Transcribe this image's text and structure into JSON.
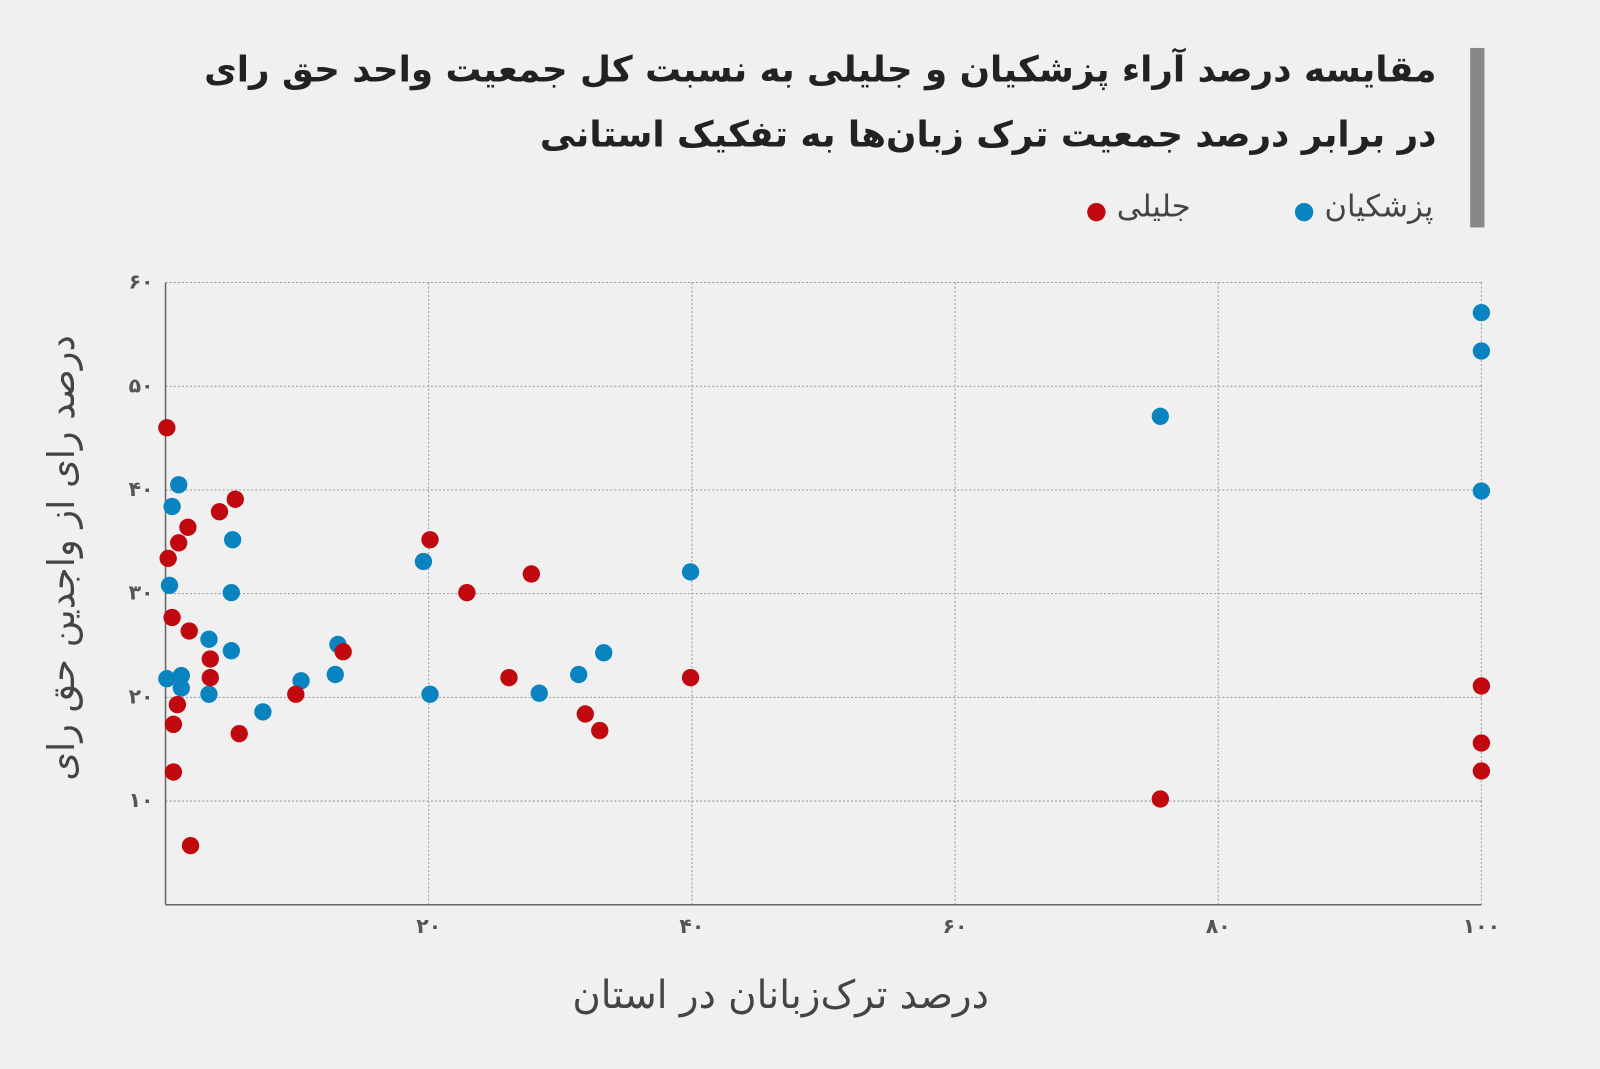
{
  "chart_data": {
    "type": "scatter",
    "title": [
      "مقایسه درصد آراء پزشکیان و جلیلی به نسبت کل جمعیت واحد حق رای",
      "در برابر درصد جمعیت ترک زبان‌ها به تفکیک استانی"
    ],
    "x_label": "درصد ترک‌زبانان در استان",
    "y_label": "درصد رای از واجدین حق رای",
    "xlim": [
      0,
      100
    ],
    "ylim": [
      0,
      60
    ],
    "xticks": [
      {
        "value": 20,
        "label": "۲۰"
      },
      {
        "value": 40,
        "label": "۴۰"
      },
      {
        "value": 60,
        "label": "۶۰"
      },
      {
        "value": 80,
        "label": "۸۰"
      },
      {
        "value": 100,
        "label": "۱۰۰"
      }
    ],
    "yticks": [
      {
        "value": 10,
        "label": "۱۰"
      },
      {
        "value": 20,
        "label": "۲۰"
      },
      {
        "value": 30,
        "label": "۳۰"
      },
      {
        "value": 40,
        "label": "۴۰"
      },
      {
        "value": 50,
        "label": "۵۰"
      },
      {
        "value": 60,
        "label": "۶۰"
      }
    ],
    "grid": true,
    "series": [
      {
        "name": "پزشکیان",
        "color": "#0a84c0",
        "x": [
          100,
          100,
          75.6,
          100,
          39.9,
          19.6,
          20.1,
          28.4,
          31.4,
          33.3,
          13.1,
          12.9,
          10.3,
          7.4,
          5.1,
          5.0,
          5.0,
          3.3,
          3.3,
          1.0,
          0.5,
          0.3,
          0.1,
          1.2,
          1.2
        ],
        "values": [
          57.1,
          53.4,
          47.1,
          39.9,
          32.1,
          33.1,
          20.3,
          20.4,
          22.2,
          24.3,
          25.1,
          22.2,
          21.6,
          18.6,
          35.2,
          30.1,
          24.5,
          25.6,
          20.3,
          40.5,
          38.4,
          30.8,
          21.8,
          22.1,
          20.9
        ]
      },
      {
        "name": "جلیلی",
        "color": "#c0080e",
        "x": [
          0.1,
          0.2,
          1.0,
          1.7,
          4.1,
          5.3,
          0.5,
          1.8,
          3.4,
          3.4,
          0.9,
          0.6,
          5.6,
          0.6,
          1.9,
          9.9,
          13.5,
          20.1,
          22.9,
          26.1,
          27.8,
          31.9,
          33.0,
          39.9,
          75.6,
          100,
          100,
          100
        ],
        "values": [
          46.0,
          33.4,
          34.9,
          36.4,
          37.9,
          39.1,
          27.7,
          26.4,
          23.7,
          21.9,
          19.3,
          17.4,
          16.5,
          12.8,
          5.7,
          20.3,
          24.4,
          35.2,
          30.1,
          21.9,
          31.9,
          18.4,
          16.8,
          21.9,
          10.2,
          21.1,
          15.6,
          12.9
        ]
      }
    ]
  }
}
